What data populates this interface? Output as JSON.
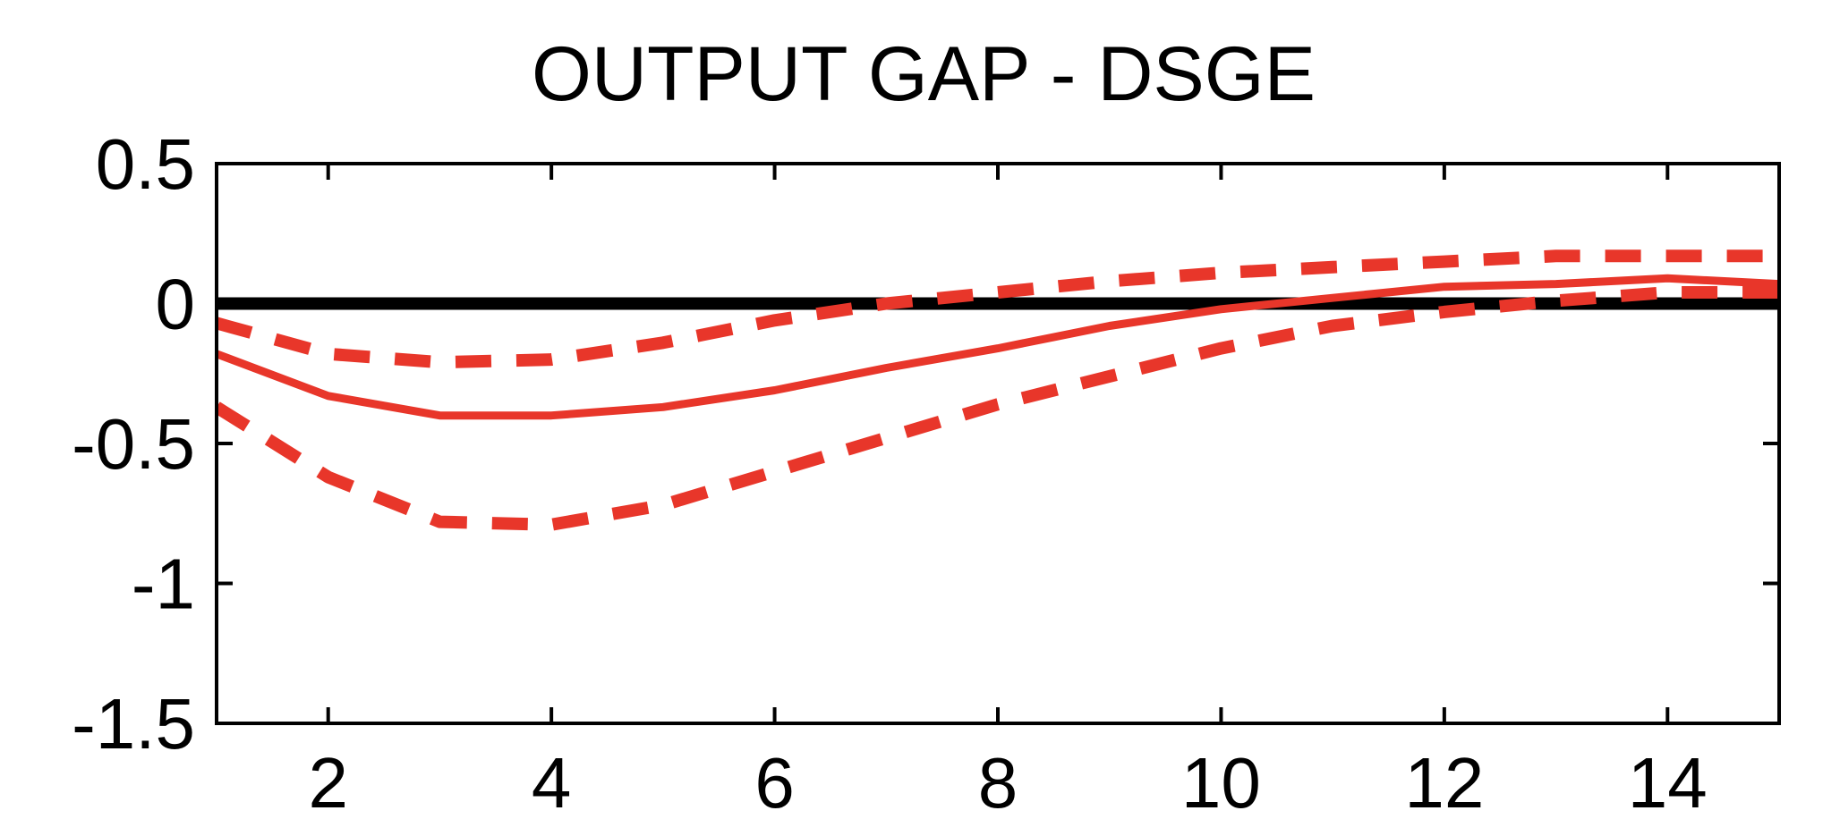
{
  "chart_data": {
    "type": "line",
    "title": "OUTPUT GAP - DSGE",
    "xlabel": "",
    "ylabel": "",
    "xlim": [
      1,
      15
    ],
    "ylim": [
      -1.5,
      0.5
    ],
    "x_ticks": [
      2,
      4,
      6,
      8,
      10,
      12,
      14
    ],
    "y_ticks": [
      0.5,
      0,
      -0.5,
      -1,
      -1.5
    ],
    "x_tick_labels": [
      "2",
      "4",
      "6",
      "8",
      "10",
      "12",
      "14"
    ],
    "y_tick_labels": [
      "0.5",
      "0",
      "-0.5",
      "-1",
      "-1.5"
    ],
    "grid": false,
    "legend": "none",
    "x": [
      1,
      2,
      3,
      4,
      5,
      6,
      7,
      8,
      9,
      10,
      11,
      12,
      13,
      14,
      15
    ],
    "reference_line": {
      "y": 0,
      "color": "#000000"
    },
    "series": [
      {
        "role": "median",
        "style": "solid",
        "color": "#e8362a",
        "values": [
          -0.18,
          -0.33,
          -0.4,
          -0.4,
          -0.37,
          -0.31,
          -0.23,
          -0.16,
          -0.08,
          -0.02,
          0.02,
          0.06,
          0.07,
          0.09,
          0.07
        ]
      },
      {
        "role": "upper-band",
        "style": "dashed",
        "color": "#e8362a",
        "values": [
          -0.07,
          -0.18,
          -0.21,
          -0.2,
          -0.14,
          -0.06,
          0.0,
          0.04,
          0.08,
          0.11,
          0.13,
          0.15,
          0.17,
          0.17,
          0.17
        ]
      },
      {
        "role": "lower-band",
        "style": "dashed",
        "color": "#e8362a",
        "values": [
          -0.37,
          -0.62,
          -0.78,
          -0.79,
          -0.72,
          -0.6,
          -0.48,
          -0.36,
          -0.26,
          -0.16,
          -0.08,
          -0.03,
          0.01,
          0.04,
          0.04
        ]
      }
    ]
  }
}
